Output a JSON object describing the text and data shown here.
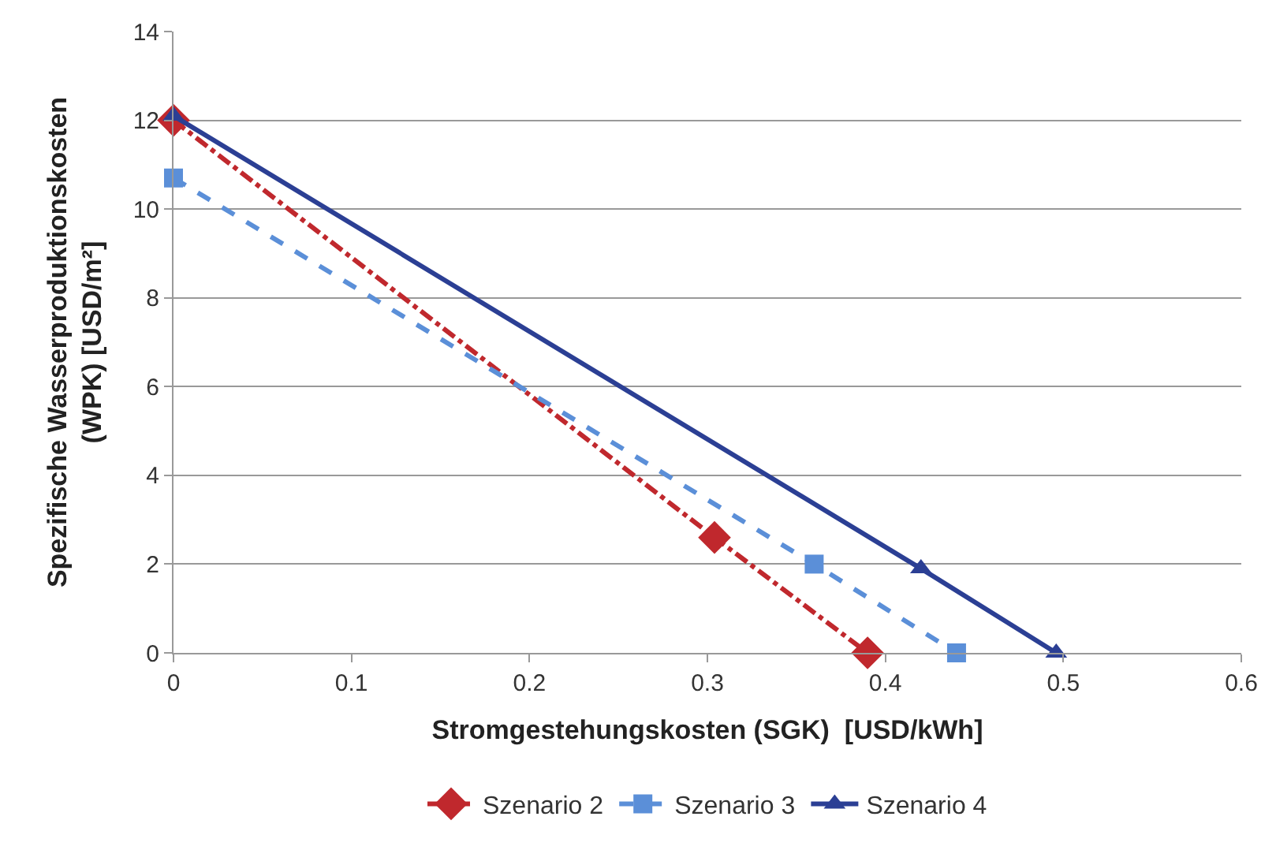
{
  "chart_data": {
    "type": "line",
    "xlabel": "Stromgestehungskosten (SGK)  [USD/kWh]",
    "ylabel": "Spezifische Wasserproduktionskosten\n(WPK) [USD/m²]",
    "xlim": [
      0,
      0.6
    ],
    "xticks": [
      0,
      0.1,
      0.2,
      0.3,
      0.4,
      0.5,
      0.6
    ],
    "ylim": [
      0,
      14
    ],
    "yticks": [
      0,
      2,
      4,
      6,
      8,
      10,
      12,
      14
    ],
    "grid": "y",
    "legend": "bottom",
    "series": [
      {
        "name": "Szenario 2",
        "color": "#c0282d",
        "x": [
          0,
          0.304,
          0.39
        ],
        "values": [
          12,
          2.6,
          0
        ],
        "marker": "diamond",
        "line_style": "dashdot"
      },
      {
        "name": "Szenario 3",
        "color": "#5b8fd8",
        "x": [
          0,
          0.36,
          0.44
        ],
        "values": [
          10.7,
          2,
          0
        ],
        "marker": "square",
        "line_style": "dashed"
      },
      {
        "name": "Szenario 4",
        "color": "#2b3f94",
        "x": [
          0,
          0.42,
          0.496
        ],
        "values": [
          12.1,
          1.9,
          0
        ],
        "marker": "triangle",
        "line_style": "solid"
      }
    ]
  }
}
